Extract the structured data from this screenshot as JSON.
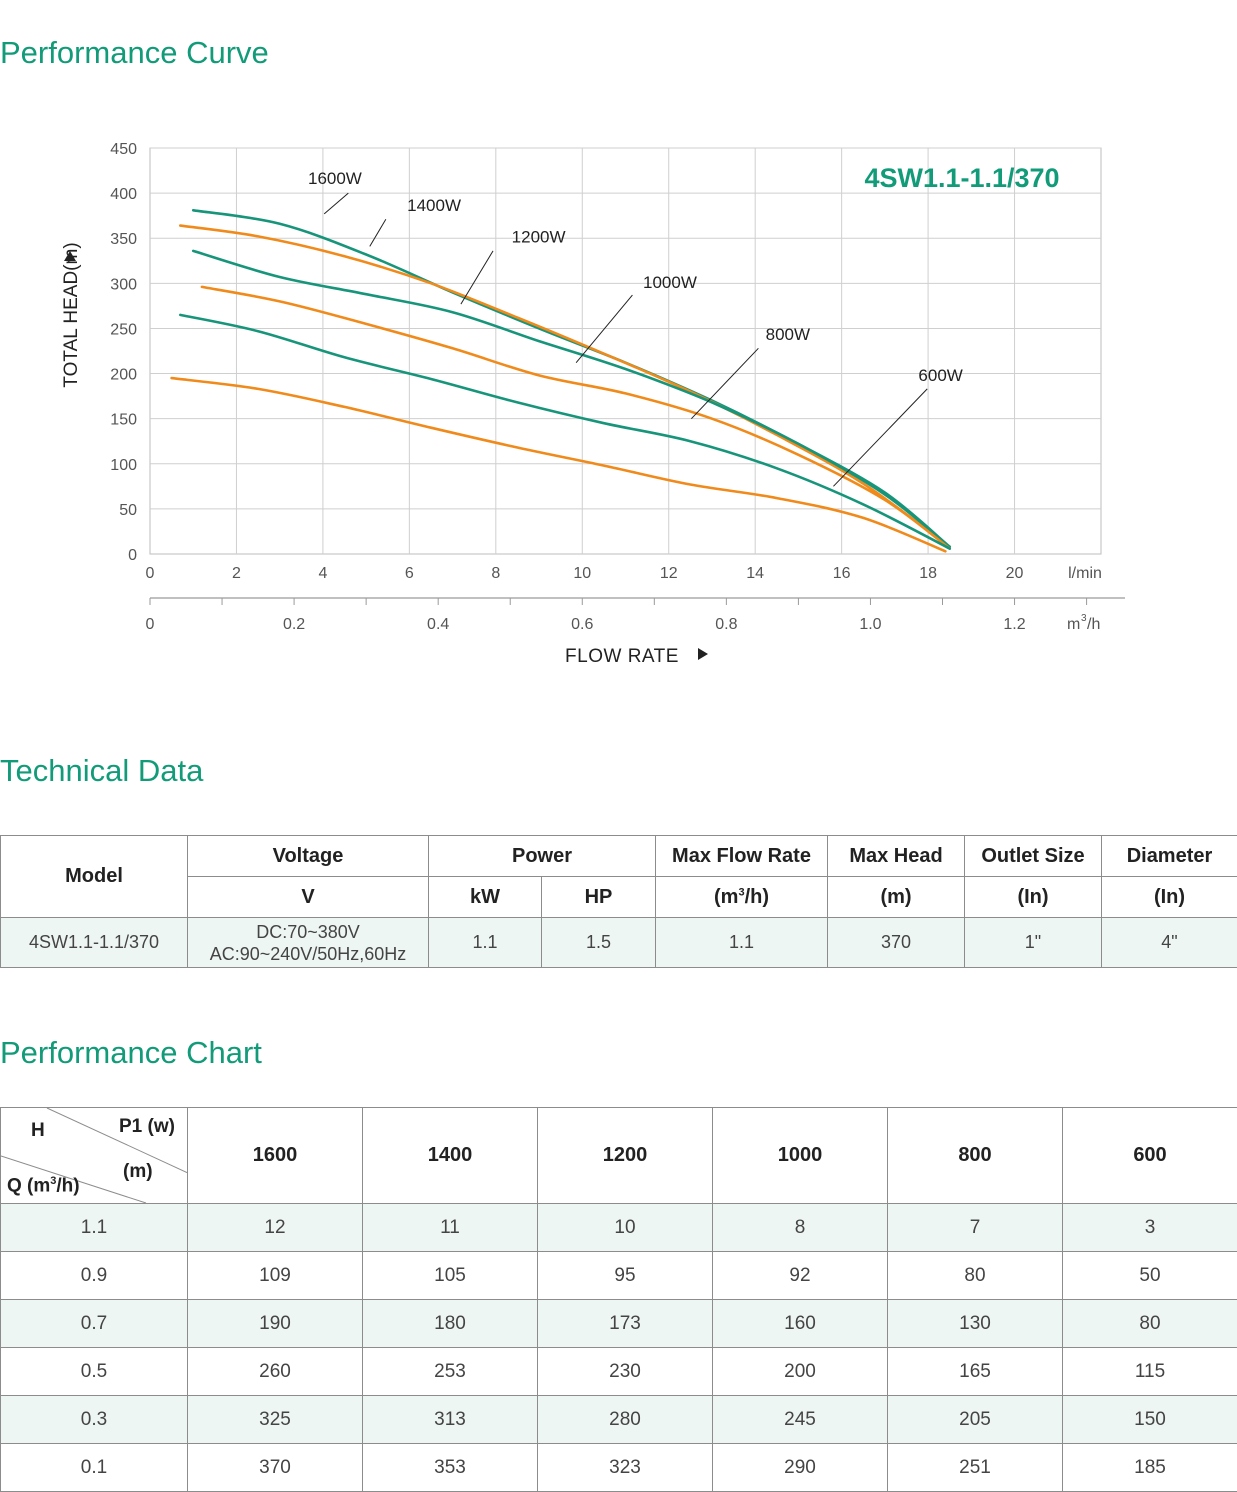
{
  "sections": {
    "performance_curve": "Performance Curve",
    "technical_data": "Technical Data",
    "performance_chart": "Performance Chart"
  },
  "colors": {
    "accent": "#129b78",
    "teal_curve": "#17957a",
    "orange_curve": "#f08a1a"
  },
  "chart_data": {
    "type": "line",
    "model_label": "4SW1.1-1.1/370",
    "xlabel": "FLOW RATE",
    "ylabel": "TOTAL HEAD(m)",
    "x_unit_primary": "l/min",
    "x_unit_secondary": "m",
    "x_unit_secondary_sup": "3",
    "x_unit_secondary_tail": "/h",
    "xlim": [
      0,
      22
    ],
    "ylim": [
      0,
      450
    ],
    "x_ticks": [
      "0",
      "2",
      "4",
      "6",
      "8",
      "10",
      "12",
      "14",
      "16",
      "18",
      "20"
    ],
    "y_ticks": [
      "0",
      "50",
      "100",
      "150",
      "200",
      "250",
      "300",
      "350",
      "400",
      "450"
    ],
    "secondary_x_ticks": [
      "0",
      "0.2",
      "0.4",
      "0.6",
      "0.8",
      "1.0",
      "1.2"
    ],
    "grid": true,
    "series": [
      {
        "name": "1600W",
        "color": "teal",
        "points": [
          [
            1.0,
            381
          ],
          [
            3.0,
            366
          ],
          [
            5.0,
            332
          ],
          [
            7.0,
            290
          ],
          [
            9.0,
            250
          ],
          [
            11.0,
            212
          ],
          [
            13.0,
            170
          ],
          [
            15.0,
            122
          ],
          [
            17.0,
            68
          ],
          [
            18.5,
            8
          ]
        ]
      },
      {
        "name": "1400W",
        "color": "orange",
        "points": [
          [
            0.7,
            364
          ],
          [
            2.5,
            352
          ],
          [
            4.5,
            330
          ],
          [
            6.5,
            300
          ],
          [
            8.5,
            262
          ],
          [
            10.5,
            222
          ],
          [
            12.5,
            180
          ],
          [
            14.5,
            132
          ],
          [
            16.5,
            78
          ],
          [
            18.5,
            8
          ]
        ]
      },
      {
        "name": "1200W",
        "color": "teal",
        "points": [
          [
            1.0,
            336
          ],
          [
            3.0,
            307
          ],
          [
            5.0,
            288
          ],
          [
            7.0,
            268
          ],
          [
            9.0,
            236
          ],
          [
            11.0,
            205
          ],
          [
            13.0,
            168
          ],
          [
            15.0,
            122
          ],
          [
            17.0,
            66
          ],
          [
            18.5,
            8
          ]
        ]
      },
      {
        "name": "1000W",
        "color": "orange",
        "points": [
          [
            1.2,
            296
          ],
          [
            3.0,
            280
          ],
          [
            5.0,
            255
          ],
          [
            7.0,
            228
          ],
          [
            9.0,
            198
          ],
          [
            11.0,
            178
          ],
          [
            13.0,
            150
          ],
          [
            15.0,
            110
          ],
          [
            17.0,
            60
          ],
          [
            18.5,
            6
          ]
        ]
      },
      {
        "name": "800W",
        "color": "teal",
        "points": [
          [
            0.7,
            265
          ],
          [
            2.5,
            247
          ],
          [
            4.5,
            218
          ],
          [
            6.5,
            194
          ],
          [
            8.5,
            168
          ],
          [
            10.5,
            145
          ],
          [
            12.5,
            125
          ],
          [
            14.5,
            95
          ],
          [
            16.5,
            55
          ],
          [
            18.5,
            6
          ]
        ]
      },
      {
        "name": "600W",
        "color": "orange",
        "points": [
          [
            0.5,
            195
          ],
          [
            2.5,
            183
          ],
          [
            4.5,
            163
          ],
          [
            6.5,
            140
          ],
          [
            8.5,
            118
          ],
          [
            10.5,
            98
          ],
          [
            12.5,
            77
          ],
          [
            14.5,
            62
          ],
          [
            16.5,
            40
          ],
          [
            18.4,
            3
          ]
        ]
      }
    ]
  },
  "technical_table": {
    "headers": {
      "model": "Model",
      "voltage": "Voltage",
      "power": "Power",
      "max_flow": "Max Flow Rate",
      "max_head": "Max Head",
      "outlet": "Outlet Size",
      "diameter": "Diameter"
    },
    "units": {
      "voltage": "V",
      "kw": "kW",
      "hp": "HP",
      "flow_pre": "(m",
      "flow_sup": "3",
      "flow_post": "/h)",
      "head": "(m)",
      "outlet": "(In)",
      "diameter": "(In)"
    },
    "row": {
      "model": "4SW1.1-1.1/370",
      "voltage_dc": "DC:70~380V",
      "voltage_ac": "AC:90~240V/50Hz,60Hz",
      "kw": "1.1",
      "hp": "1.5",
      "max_flow": "1.1",
      "max_head": "370",
      "outlet": "1\"",
      "diameter": "4\""
    }
  },
  "performance_table": {
    "corner": {
      "h": "H",
      "p1": "P1 (w)",
      "m": "(m)",
      "q_pre": "Q (m",
      "q_sup": "3",
      "q_post": "/h)"
    },
    "power_columns": [
      "1600",
      "1400",
      "1200",
      "1000",
      "800",
      "600"
    ],
    "rows": [
      {
        "q": "1.1",
        "values": [
          "12",
          "11",
          "10",
          "8",
          "7",
          "3"
        ]
      },
      {
        "q": "0.9",
        "values": [
          "109",
          "105",
          "95",
          "92",
          "80",
          "50"
        ]
      },
      {
        "q": "0.7",
        "values": [
          "190",
          "180",
          "173",
          "160",
          "130",
          "80"
        ]
      },
      {
        "q": "0.5",
        "values": [
          "260",
          "253",
          "230",
          "200",
          "165",
          "115"
        ]
      },
      {
        "q": "0.3",
        "values": [
          "325",
          "313",
          "280",
          "245",
          "205",
          "150"
        ]
      },
      {
        "q": "0.1",
        "values": [
          "370",
          "353",
          "323",
          "290",
          "251",
          "185"
        ]
      }
    ]
  }
}
